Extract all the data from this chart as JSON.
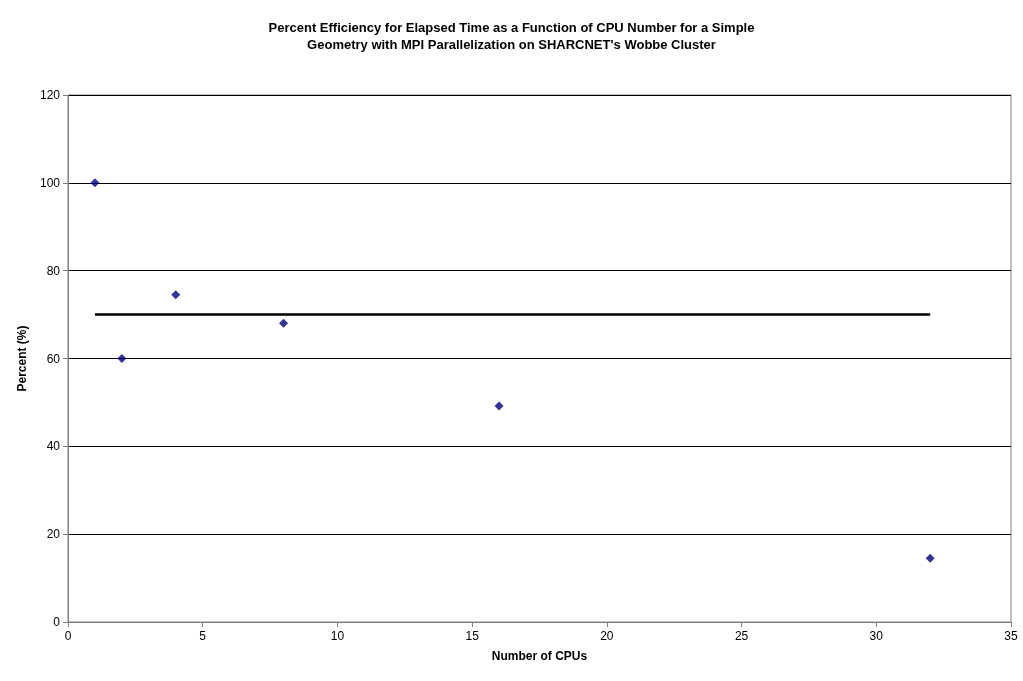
{
  "chart_data": {
    "type": "scatter",
    "title": "Percent Efficiency for Elapsed Time as a Function of CPU Number for a Simple\nGeometry with MPI Parallelization on SHARCNET's Wobbe Cluster",
    "xlabel": "Number of CPUs",
    "ylabel": "Percent (%)",
    "series": [
      {
        "color": "#000080",
        "x": [
          1,
          2,
          4,
          8,
          16,
          32
        ],
        "values": [
          100,
          60,
          74.5,
          68,
          49.2,
          14.5
        ],
        "marker": "diamond"
      },
      {
        "type": "line",
        "color": "#000000",
        "x": [
          1,
          32
        ],
        "values": [
          70,
          70
        ],
        "marker": "none",
        "line_style": "solid"
      }
    ],
    "xlim": [
      0,
      35
    ],
    "xticks": [
      0,
      5,
      10,
      15,
      20,
      25,
      30,
      35
    ],
    "ylim": [
      0,
      120
    ],
    "yticks": [
      0,
      20,
      40,
      60,
      80,
      100,
      120
    ],
    "grid": "y"
  }
}
